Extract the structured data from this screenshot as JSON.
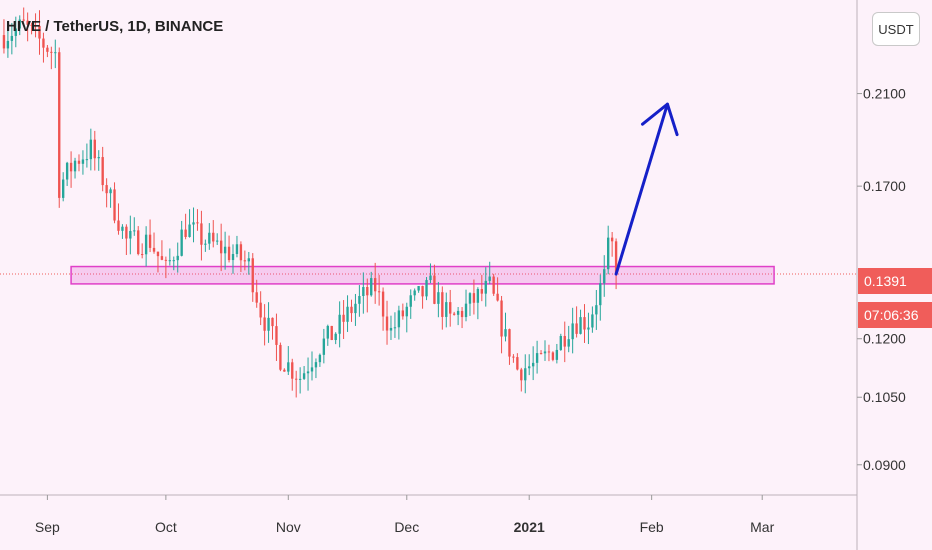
{
  "header": {
    "symbol_title": "HIVE / TetherUS, 1D, BINANCE",
    "currency_button": "USDT"
  },
  "price_tag": {
    "last_price": "0.1391",
    "countdown": "07:06:36"
  },
  "colors": {
    "up": "#26a69a",
    "down": "#ef5350",
    "zone": "#e040c8",
    "arrow": "#1520c8",
    "background": "#fdf2fa"
  },
  "chart_data": {
    "type": "candlestick",
    "title": "HIVE / TetherUS, 1D, BINANCE",
    "y_ticks": [
      "0.0900",
      "0.1050",
      "0.1200",
      "0.1700",
      "0.2100"
    ],
    "y_tick_values": [
      0.09,
      0.105,
      0.12,
      0.17,
      0.21
    ],
    "y_scale": "log",
    "ylim": [
      0.084,
      0.26
    ],
    "x_ticks": [
      "Sep",
      "Oct",
      "Nov",
      "Dec",
      "2021",
      "Feb",
      "Mar"
    ],
    "x_tick_dates": [
      "2020-09-01",
      "2020-10-01",
      "2020-11-01",
      "2020-12-01",
      "2021-01-01",
      "2021-02-01",
      "2021-03-01"
    ],
    "xlim": [
      "2020-08-20",
      "2021-03-25"
    ],
    "last_price": 0.1391,
    "support_zone": {
      "low": 0.136,
      "high": 0.1415,
      "start": "2020-09-07",
      "end": "2021-03-04"
    },
    "projection_arrow": {
      "from": [
        "2021-01-23",
        0.1391
      ],
      "to": [
        "2021-02-05",
        0.205
      ]
    },
    "candles_description": "Daily OHLC bars generated below",
    "anchors": [
      [
        "2020-08-21",
        0.24
      ],
      [
        "2020-08-26",
        0.245
      ],
      [
        "2020-08-31",
        0.235
      ],
      [
        "2020-09-03",
        0.23
      ],
      [
        "2020-09-04",
        0.17
      ],
      [
        "2020-09-08",
        0.18
      ],
      [
        "2020-09-12",
        0.185
      ],
      [
        "2020-09-17",
        0.165
      ],
      [
        "2020-09-21",
        0.15
      ],
      [
        "2020-09-27",
        0.15
      ],
      [
        "2020-10-01",
        0.14
      ],
      [
        "2020-10-06",
        0.155
      ],
      [
        "2020-10-11",
        0.15
      ],
      [
        "2020-10-19",
        0.145
      ],
      [
        "2020-10-22",
        0.142
      ],
      [
        "2020-10-25",
        0.128
      ],
      [
        "2020-10-30",
        0.115
      ],
      [
        "2020-11-04",
        0.11
      ],
      [
        "2020-11-09",
        0.118
      ],
      [
        "2020-11-13",
        0.122
      ],
      [
        "2020-11-18",
        0.13
      ],
      [
        "2020-11-23",
        0.135
      ],
      [
        "2020-11-27",
        0.122
      ],
      [
        "2020-12-02",
        0.13
      ],
      [
        "2020-12-07",
        0.135
      ],
      [
        "2020-12-12",
        0.125
      ],
      [
        "2020-12-17",
        0.13
      ],
      [
        "2020-12-22",
        0.135
      ],
      [
        "2020-12-26",
        0.12
      ],
      [
        "2020-12-29",
        0.112
      ],
      [
        "2021-01-03",
        0.113
      ],
      [
        "2021-01-08",
        0.118
      ],
      [
        "2021-01-12",
        0.125
      ],
      [
        "2021-01-16",
        0.125
      ],
      [
        "2021-01-20",
        0.138
      ],
      [
        "2021-01-21",
        0.147
      ],
      [
        "2021-01-22",
        0.148
      ],
      [
        "2021-01-23",
        0.1391
      ]
    ]
  }
}
